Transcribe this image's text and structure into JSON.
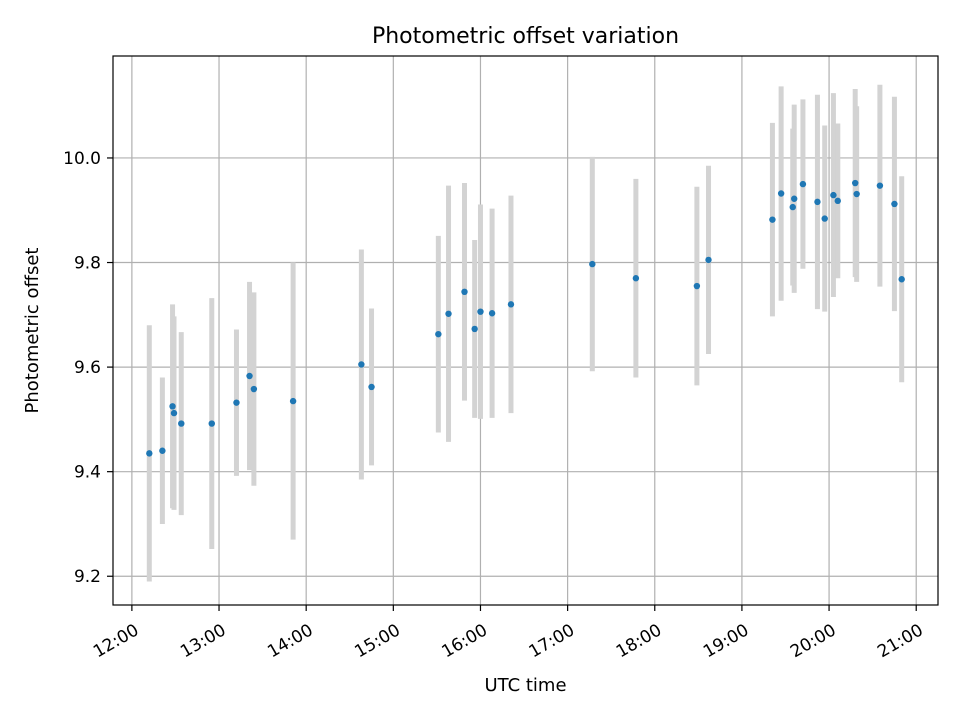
{
  "chart_data": {
    "type": "scatter",
    "title": "Photometric offset variation",
    "xlabel": "UTC time",
    "ylabel": "Photometric offset",
    "xlim": [
      "11:47",
      "21:15"
    ],
    "ylim": [
      9.145,
      10.195
    ],
    "x_ticks": [
      "12:00",
      "13:00",
      "14:00",
      "15:00",
      "16:00",
      "17:00",
      "18:00",
      "19:00",
      "20:00",
      "21:00"
    ],
    "y_ticks": [
      9.2,
      9.4,
      9.6,
      9.8,
      10.0
    ],
    "y_tick_labels": [
      "9.2",
      "9.4",
      "9.6",
      "9.8",
      "10.0"
    ],
    "grid": true,
    "errorbar_color": "#d3d3d3",
    "marker_color": "#1f77b4",
    "series": [
      {
        "x": [
          "12:12",
          "12:21",
          "12:28",
          "12:29",
          "12:34",
          "12:55",
          "13:12",
          "13:21",
          "13:24",
          "13:51",
          "14:38",
          "14:45",
          "15:31",
          "15:38",
          "15:49",
          "15:56",
          "16:00",
          "16:08",
          "16:21",
          "17:17",
          "17:47",
          "18:29",
          "18:37",
          "19:21",
          "19:27",
          "19:35",
          "19:36",
          "19:42",
          "19:52",
          "19:57",
          "20:03",
          "20:06",
          "20:18",
          "20:19",
          "20:35",
          "20:45",
          "20:50"
        ],
        "y": [
          9.435,
          9.44,
          9.525,
          9.512,
          9.492,
          9.492,
          9.532,
          9.583,
          9.558,
          9.535,
          9.605,
          9.562,
          9.663,
          9.702,
          9.744,
          9.673,
          9.706,
          9.703,
          9.72,
          9.797,
          9.77,
          9.755,
          9.805,
          9.882,
          9.932,
          9.906,
          9.922,
          9.95,
          9.916,
          9.884,
          9.929,
          9.918,
          9.952,
          9.931,
          9.947,
          9.912,
          9.768
        ],
        "yerr": [
          0.245,
          0.14,
          0.195,
          0.185,
          0.175,
          0.24,
          0.14,
          0.18,
          0.185,
          0.265,
          0.22,
          0.15,
          0.188,
          0.245,
          0.208,
          0.17,
          0.205,
          0.2,
          0.208,
          0.205,
          0.19,
          0.19,
          0.18,
          0.185,
          0.205,
          0.15,
          0.18,
          0.162,
          0.205,
          0.178,
          0.195,
          0.148,
          0.18,
          0.168,
          0.193,
          0.205,
          0.197
        ]
      }
    ]
  }
}
